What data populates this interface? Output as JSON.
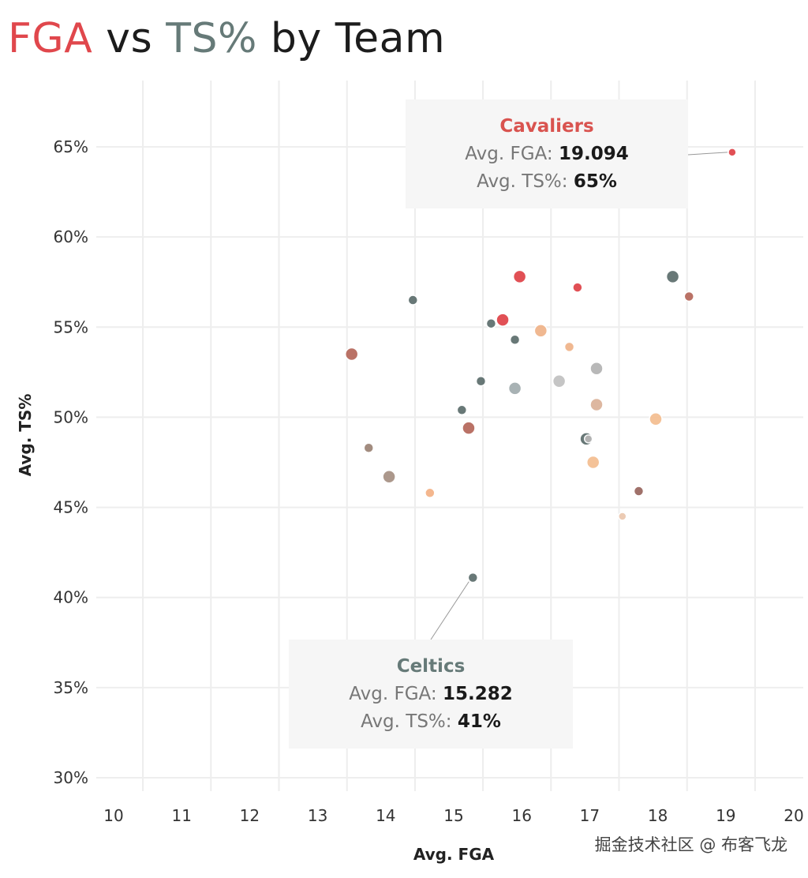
{
  "title": {
    "part1": "FGA",
    "part2": " vs ",
    "part3": "TS%",
    "part4": " by Team",
    "color1": "#e0474c",
    "color3": "#667a78"
  },
  "chart_data": {
    "type": "scatter",
    "title": "FGA vs TS% by Team",
    "xlabel": "Avg. FGA",
    "ylabel": "Avg. TS%",
    "xlim": [
      9.8,
      20.1
    ],
    "ylim": [
      29.5,
      68
    ],
    "x_ticks": [
      10,
      11,
      12,
      13,
      14,
      15,
      16,
      17,
      18,
      19,
      20
    ],
    "y_ticks": [
      30,
      35,
      40,
      45,
      50,
      55,
      60,
      65
    ],
    "y_tick_labels": [
      "30%",
      "35%",
      "40%",
      "45%",
      "50%",
      "55%",
      "60%",
      "65%"
    ],
    "grid": true,
    "points": [
      {
        "x": 19.094,
        "y": 64.7,
        "size": 5,
        "color": "#e0474c"
      },
      {
        "x": 15.97,
        "y": 57.8,
        "size": 8,
        "color": "#e0474c"
      },
      {
        "x": 16.82,
        "y": 57.2,
        "size": 6,
        "color": "#e0474c"
      },
      {
        "x": 18.22,
        "y": 57.8,
        "size": 8,
        "color": "#607170"
      },
      {
        "x": 18.46,
        "y": 56.7,
        "size": 6,
        "color": "#b76b5e"
      },
      {
        "x": 14.4,
        "y": 56.5,
        "size": 6,
        "color": "#607170"
      },
      {
        "x": 15.55,
        "y": 55.2,
        "size": 6,
        "color": "#607170"
      },
      {
        "x": 15.72,
        "y": 55.4,
        "size": 8,
        "color": "#e0474c"
      },
      {
        "x": 16.28,
        "y": 54.8,
        "size": 8,
        "color": "#f0b58c"
      },
      {
        "x": 15.9,
        "y": 54.3,
        "size": 6,
        "color": "#607170"
      },
      {
        "x": 16.7,
        "y": 53.9,
        "size": 6,
        "color": "#f0b58c"
      },
      {
        "x": 13.5,
        "y": 53.5,
        "size": 8,
        "color": "#b76b5e"
      },
      {
        "x": 17.1,
        "y": 52.7,
        "size": 8,
        "color": "#b5b5b5"
      },
      {
        "x": 15.4,
        "y": 52.0,
        "size": 6,
        "color": "#607170"
      },
      {
        "x": 16.55,
        "y": 52.0,
        "size": 8,
        "color": "#c2c2c2"
      },
      {
        "x": 15.9,
        "y": 51.6,
        "size": 8,
        "color": "#a4aeb0"
      },
      {
        "x": 17.1,
        "y": 50.7,
        "size": 8,
        "color": "#dcb49b"
      },
      {
        "x": 15.12,
        "y": 50.4,
        "size": 6,
        "color": "#607170"
      },
      {
        "x": 17.97,
        "y": 49.9,
        "size": 8,
        "color": "#f4bf93"
      },
      {
        "x": 15.22,
        "y": 49.4,
        "size": 8,
        "color": "#b76b5e"
      },
      {
        "x": 16.95,
        "y": 48.8,
        "size": 8,
        "color": "#607170"
      },
      {
        "x": 16.98,
        "y": 48.8,
        "size": 5,
        "color": "#b5b5b5"
      },
      {
        "x": 13.75,
        "y": 48.3,
        "size": 6,
        "color": "#9e8679"
      },
      {
        "x": 17.05,
        "y": 47.5,
        "size": 8,
        "color": "#f4bf93"
      },
      {
        "x": 14.05,
        "y": 46.7,
        "size": 8,
        "color": "#a89386"
      },
      {
        "x": 14.65,
        "y": 45.8,
        "size": 6,
        "color": "#f4b489"
      },
      {
        "x": 17.72,
        "y": 45.9,
        "size": 6,
        "color": "#9b6a63"
      },
      {
        "x": 17.48,
        "y": 44.5,
        "size": 5,
        "color": "#ecc9b0"
      },
      {
        "x": 15.282,
        "y": 41.1,
        "size": 6,
        "color": "#607170"
      }
    ],
    "annotations": [
      {
        "team": "Cavaliers",
        "fga_label": "Avg. FGA:",
        "fga": "19.094",
        "ts_label": "Avg. TS%:",
        "ts": "65%",
        "x": 19.094,
        "y": 64.7,
        "color": "#d9534f"
      },
      {
        "team": "Celtics",
        "fga_label": "Avg. FGA:",
        "fga": "15.282",
        "ts_label": "Avg. TS%:",
        "ts": "41%",
        "x": 15.282,
        "y": 41.1,
        "color": "#667a78"
      }
    ]
  },
  "watermark": "掘金技术社区 @ 布客飞龙"
}
